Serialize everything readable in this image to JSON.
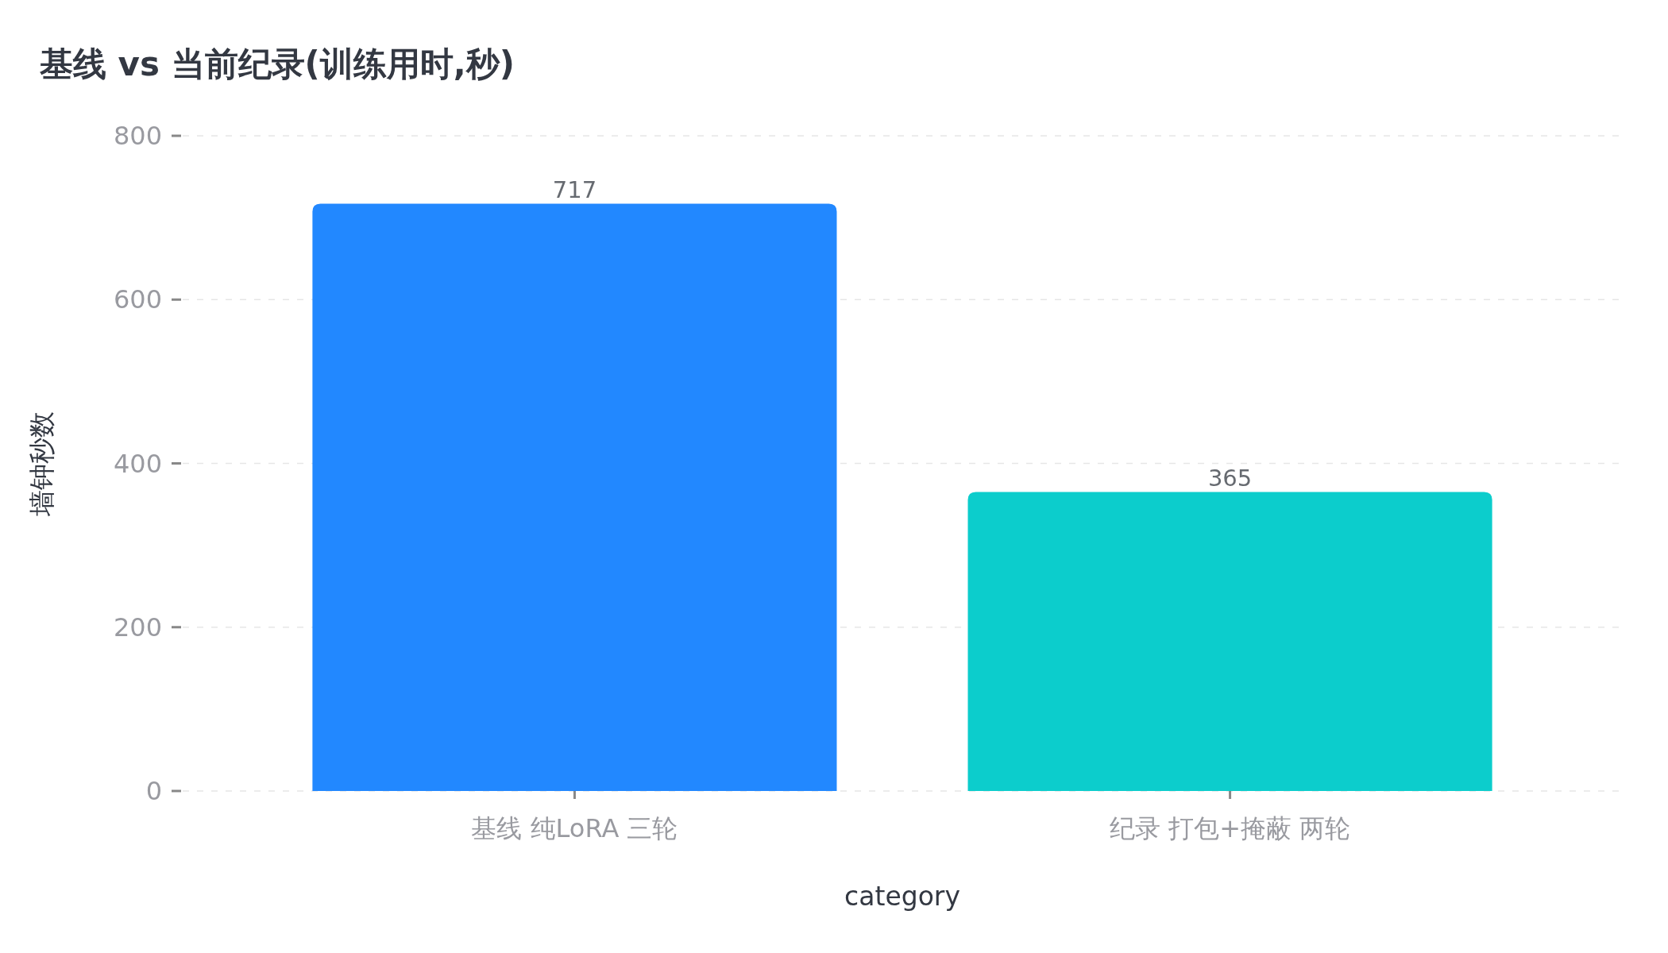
{
  "chart_data": {
    "type": "bar",
    "title": "基线 vs 当前纪录(训练用时,秒)",
    "xlabel": "category",
    "ylabel": "墙钟秒数",
    "categories": [
      "基线 纯LoRA 三轮",
      "纪录 打包+掩蔽 两轮"
    ],
    "values": [
      717,
      365
    ],
    "colors": [
      "#2288ff",
      "#0ccdcc"
    ],
    "ylim": [
      0,
      800
    ],
    "yticks": [
      0,
      200,
      400,
      600,
      800
    ],
    "grid": "y",
    "data_labels": true
  }
}
